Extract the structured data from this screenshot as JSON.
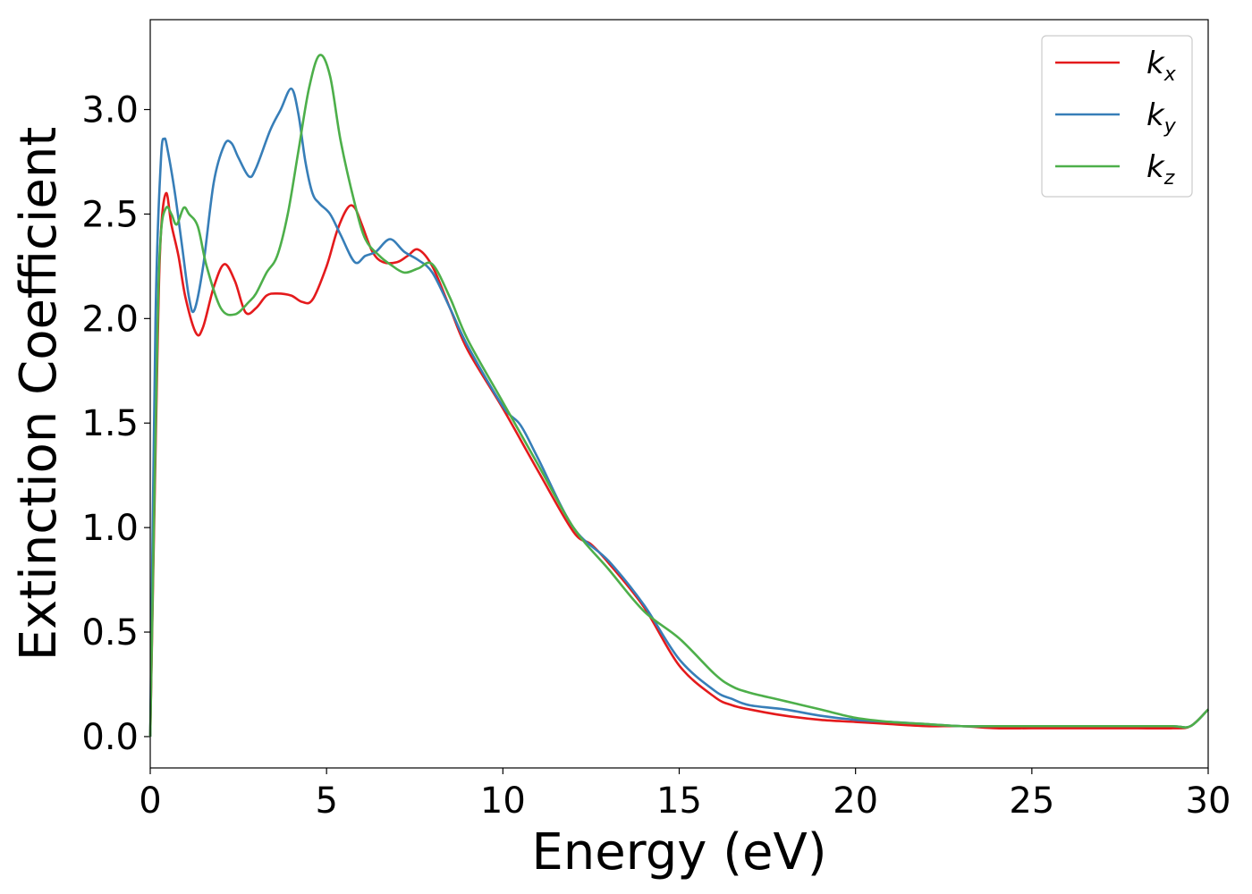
{
  "chart_data": {
    "type": "line",
    "title": "",
    "xlabel": "Energy (eV)",
    "ylabel": "Extinction Coefficient",
    "xlim": [
      0,
      30
    ],
    "ylim": [
      -0.15,
      3.43
    ],
    "xticks": [
      0,
      5,
      10,
      15,
      20,
      25,
      30
    ],
    "xtick_labels": [
      "0",
      "5",
      "10",
      "15",
      "20",
      "25",
      "30"
    ],
    "yticks": [
      0.0,
      0.5,
      1.0,
      1.5,
      2.0,
      2.5,
      3.0
    ],
    "ytick_labels": [
      "0.0",
      "0.5",
      "1.0",
      "1.5",
      "2.0",
      "2.5",
      "3.0"
    ],
    "grid": false,
    "legend_position": "top-right",
    "series": [
      {
        "name": "k",
        "subscript": "x",
        "color": "#e41a1c",
        "x": [
          0,
          0.2,
          0.3,
          0.45,
          0.6,
          0.8,
          1.0,
          1.3,
          1.5,
          1.8,
          2.1,
          2.4,
          2.7,
          3.0,
          3.3,
          3.6,
          4.0,
          4.3,
          4.6,
          5.0,
          5.3,
          5.6,
          5.8,
          6.0,
          6.3,
          6.6,
          7.0,
          7.3,
          7.6,
          8.0,
          8.5,
          9.0,
          10.0,
          11.0,
          12.0,
          12.5,
          13.0,
          14.0,
          15.0,
          16.0,
          16.5,
          17.0,
          18.0,
          19.0,
          20.0,
          21.0,
          22.0,
          23.0,
          24.0,
          25.0,
          26.0,
          27.0,
          27.5,
          28.0,
          29.0,
          29.5,
          30.0
        ],
        "y": [
          0.0,
          1.8,
          2.4,
          2.6,
          2.45,
          2.3,
          2.1,
          1.93,
          1.96,
          2.15,
          2.26,
          2.18,
          2.03,
          2.05,
          2.11,
          2.12,
          2.11,
          2.08,
          2.09,
          2.25,
          2.42,
          2.53,
          2.53,
          2.45,
          2.32,
          2.27,
          2.27,
          2.3,
          2.33,
          2.25,
          2.05,
          1.85,
          1.57,
          1.27,
          0.98,
          0.92,
          0.83,
          0.62,
          0.34,
          0.19,
          0.15,
          0.13,
          0.1,
          0.08,
          0.07,
          0.06,
          0.05,
          0.05,
          0.04,
          0.04,
          0.04,
          0.04,
          0.04,
          0.04,
          0.04,
          0.05,
          0.13
        ]
      },
      {
        "name": "k",
        "subscript": "y",
        "color": "#377eb8",
        "x": [
          0,
          0.15,
          0.3,
          0.4,
          0.5,
          0.7,
          0.9,
          1.1,
          1.25,
          1.5,
          1.8,
          2.1,
          2.3,
          2.5,
          2.8,
          3.0,
          3.4,
          3.7,
          4.0,
          4.2,
          4.4,
          4.6,
          4.8,
          5.1,
          5.4,
          5.8,
          6.1,
          6.4,
          6.8,
          7.2,
          7.6,
          8.0,
          8.5,
          9.0,
          10.0,
          10.5,
          11.0,
          12.0,
          13.0,
          14.0,
          15.0,
          16.0,
          16.5,
          17.0,
          18.0,
          19.0,
          20.0,
          21.0,
          22.0,
          23.0,
          24.0,
          25.0,
          26.0,
          27.0,
          28.0,
          29.0,
          29.5,
          30.0
        ],
        "y": [
          0.0,
          2.0,
          2.75,
          2.86,
          2.8,
          2.6,
          2.35,
          2.1,
          2.04,
          2.25,
          2.65,
          2.83,
          2.84,
          2.77,
          2.68,
          2.72,
          2.9,
          3.0,
          3.1,
          2.98,
          2.75,
          2.6,
          2.55,
          2.5,
          2.4,
          2.27,
          2.3,
          2.32,
          2.38,
          2.32,
          2.28,
          2.22,
          2.05,
          1.87,
          1.58,
          1.49,
          1.33,
          1.0,
          0.84,
          0.63,
          0.37,
          0.22,
          0.18,
          0.15,
          0.13,
          0.1,
          0.08,
          0.07,
          0.06,
          0.05,
          0.05,
          0.05,
          0.05,
          0.05,
          0.05,
          0.05,
          0.05,
          0.13
        ]
      },
      {
        "name": "k",
        "subscript": "z",
        "color": "#4daf4a",
        "x": [
          0,
          0.2,
          0.3,
          0.45,
          0.6,
          0.75,
          0.95,
          1.1,
          1.35,
          1.6,
          2.0,
          2.4,
          2.8,
          3.0,
          3.3,
          3.6,
          3.9,
          4.2,
          4.5,
          4.8,
          5.1,
          5.4,
          5.8,
          6.1,
          6.5,
          6.8,
          7.2,
          7.6,
          8.0,
          8.5,
          9.0,
          10.0,
          11.0,
          12.0,
          13.0,
          14.0,
          15.0,
          16.0,
          16.5,
          17.0,
          18.0,
          19.0,
          20.0,
          21.0,
          22.0,
          23.0,
          24.0,
          25.0,
          26.0,
          27.0,
          28.0,
          29.0,
          29.5,
          30.0
        ],
        "y": [
          0.0,
          1.9,
          2.4,
          2.53,
          2.5,
          2.45,
          2.53,
          2.5,
          2.44,
          2.25,
          2.05,
          2.02,
          2.08,
          2.12,
          2.22,
          2.3,
          2.5,
          2.8,
          3.1,
          3.26,
          3.16,
          2.85,
          2.55,
          2.38,
          2.3,
          2.26,
          2.22,
          2.24,
          2.26,
          2.1,
          1.9,
          1.6,
          1.3,
          1.0,
          0.8,
          0.6,
          0.47,
          0.3,
          0.24,
          0.21,
          0.17,
          0.13,
          0.09,
          0.07,
          0.06,
          0.05,
          0.05,
          0.05,
          0.05,
          0.05,
          0.05,
          0.05,
          0.05,
          0.13
        ]
      }
    ]
  }
}
